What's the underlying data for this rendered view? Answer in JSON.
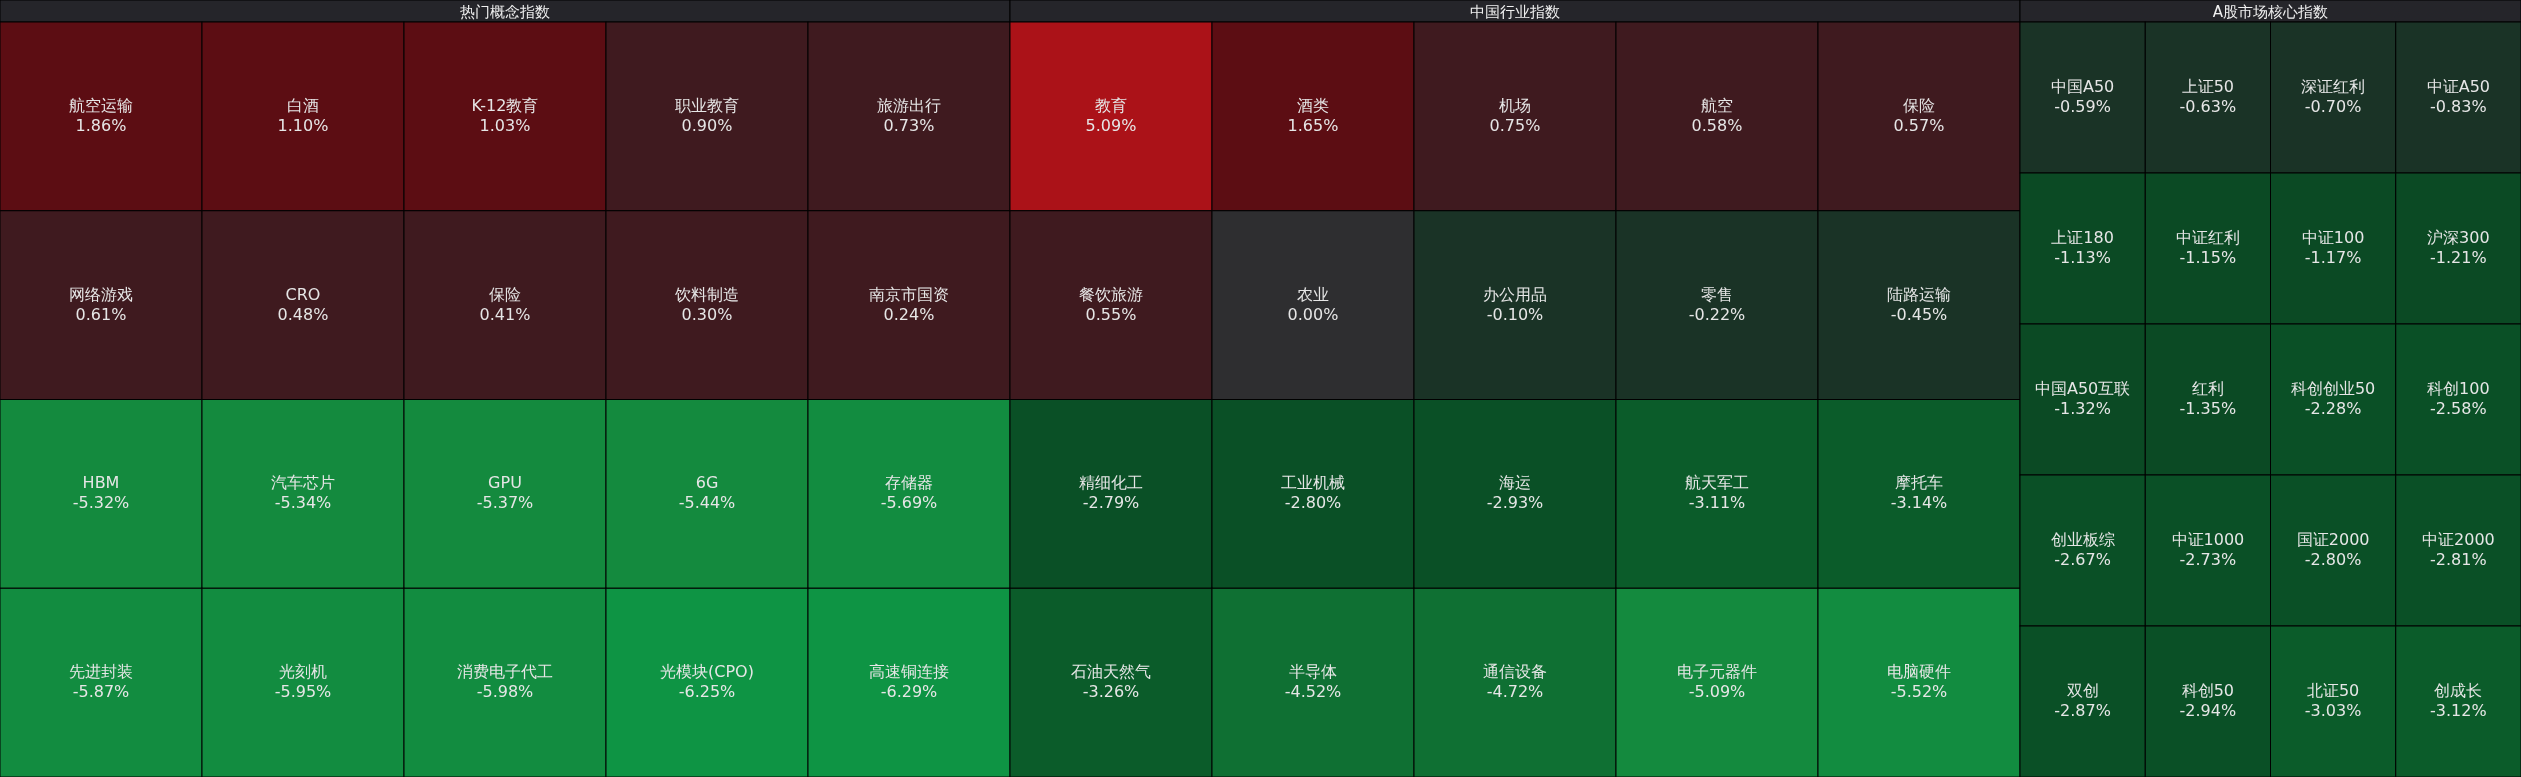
{
  "chart_data": [
    {
      "type": "other",
      "title": "热门概念指数",
      "categories": [
        "航空运输",
        "白酒",
        "K-12教育",
        "职业教育",
        "旅游出行",
        "网络游戏",
        "CRO",
        "保险",
        "饮料制造",
        "南京市国资",
        "HBM",
        "汽车芯片",
        "GPU",
        "6G",
        "存储器",
        "先进封装",
        "光刻机",
        "消费电子代工",
        "光模块(CPO)",
        "高速铜连接"
      ],
      "values": [
        1.86,
        1.1,
        1.03,
        0.9,
        0.73,
        0.61,
        0.48,
        0.41,
        0.3,
        0.24,
        -5.32,
        -5.34,
        -5.37,
        -5.44,
        -5.69,
        -5.87,
        -5.95,
        -5.98,
        -6.25,
        -6.29
      ],
      "value_labels": [
        "1.86%",
        "1.10%",
        "1.03%",
        "0.90%",
        "0.73%",
        "0.61%",
        "0.48%",
        "0.41%",
        "0.30%",
        "0.24%",
        "-5.32%",
        "-5.34%",
        "-5.37%",
        "-5.44%",
        "-5.69%",
        "-5.87%",
        "-5.95%",
        "-5.98%",
        "-6.25%",
        "-6.29%"
      ]
    },
    {
      "type": "other",
      "title": "中国行业指数",
      "categories": [
        "教育",
        "酒类",
        "机场",
        "航空",
        "保险",
        "餐饮旅游",
        "农业",
        "办公用品",
        "零售",
        "陆路运输",
        "精细化工",
        "工业机械",
        "海运",
        "航天军工",
        "摩托车",
        "石油天然气",
        "半导体",
        "通信设备",
        "电子元器件",
        "电脑硬件"
      ],
      "values": [
        5.09,
        1.65,
        0.75,
        0.58,
        0.57,
        0.55,
        0.0,
        -0.1,
        -0.22,
        -0.45,
        -2.79,
        -2.8,
        -2.93,
        -3.11,
        -3.14,
        -3.26,
        -4.52,
        -4.72,
        -5.09,
        -5.52
      ],
      "value_labels": [
        "5.09%",
        "1.65%",
        "0.75%",
        "0.58%",
        "0.57%",
        "0.55%",
        "0.00%",
        "-0.10%",
        "-0.22%",
        "-0.45%",
        "-2.79%",
        "-2.80%",
        "-2.93%",
        "-3.11%",
        "-3.14%",
        "-3.26%",
        "-4.52%",
        "-4.72%",
        "-5.09%",
        "-5.52%"
      ]
    },
    {
      "type": "other",
      "title": "A股市场核心指数",
      "categories": [
        "中国A50",
        "上证50",
        "深证红利",
        "中证A50",
        "上证180",
        "中证红利",
        "中证100",
        "沪深300",
        "中国A50互联",
        "红利",
        "科创创业50",
        "科创100",
        "创业板综",
        "中证1000",
        "国证2000",
        "中证2000",
        "双创",
        "科创50",
        "北证50",
        "创成长"
      ],
      "values": [
        -0.59,
        -0.63,
        -0.7,
        -0.83,
        -1.13,
        -1.15,
        -1.17,
        -1.21,
        -1.32,
        -1.35,
        -2.28,
        -2.58,
        -2.67,
        -2.73,
        -2.8,
        -2.81,
        -2.87,
        -2.94,
        -3.03,
        -3.12
      ],
      "value_labels": [
        "-0.59%",
        "-0.63%",
        "-0.70%",
        "-0.83%",
        "-1.13%",
        "-1.15%",
        "-1.17%",
        "-1.21%",
        "-1.32%",
        "-1.35%",
        "-2.28%",
        "-2.58%",
        "-2.67%",
        "-2.73%",
        "-2.80%",
        "-2.81%",
        "-2.87%",
        "-2.94%",
        "-3.03%",
        "-3.12%"
      ]
    }
  ]
}
